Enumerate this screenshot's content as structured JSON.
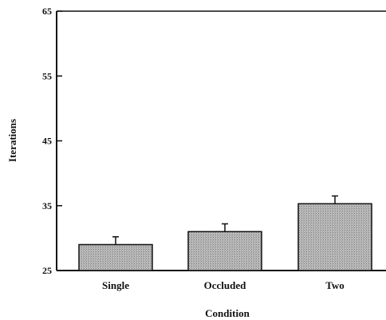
{
  "chart_data": {
    "type": "bar",
    "title": "",
    "xlabel": "Condition",
    "ylabel": "Iterations",
    "categories": [
      "Single",
      "Occluded",
      "Two"
    ],
    "values": [
      29.0,
      31.0,
      35.3
    ],
    "error": [
      1.2,
      1.2,
      1.2
    ],
    "ylim": [
      25,
      65
    ],
    "yticks": [
      25,
      35,
      45,
      55,
      65
    ],
    "ytick_labels": [
      "25",
      "35",
      "45",
      "55",
      "65"
    ],
    "grid": false,
    "bar_fill": "#bdbdbd",
    "bar_hatch_color": "#7a7a7a",
    "axis_color": "#111111"
  }
}
